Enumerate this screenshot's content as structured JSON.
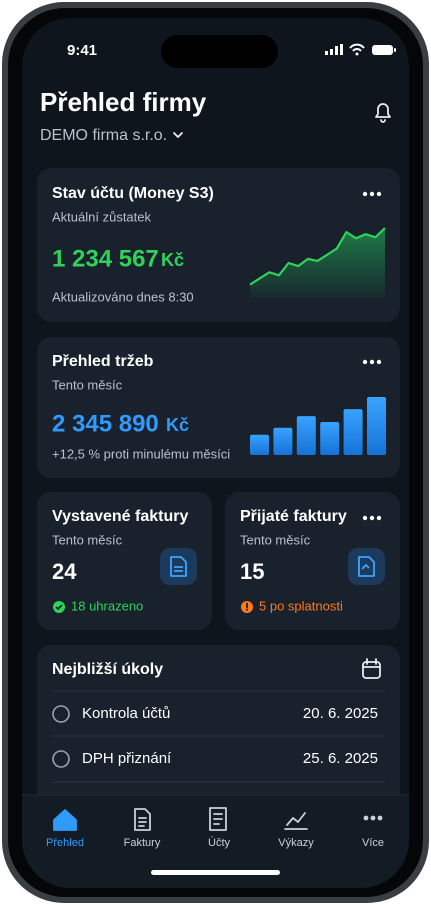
{
  "status_bar": {
    "time": "9:41"
  },
  "header": {
    "title": "Přehled firmy",
    "company": "DEMO firma s.r.o."
  },
  "balance_card": {
    "title": "Stav účtu (Money S3)",
    "label": "Aktuální zůstatek",
    "amount": "1 234 567",
    "currency": "Kč",
    "updated": "Aktualizováno dnes 8:30",
    "trend": [
      13,
      19,
      25,
      22,
      34,
      31,
      38,
      36,
      42,
      48,
      64,
      58,
      62,
      59,
      68
    ]
  },
  "revenue_card": {
    "title": "Přehled tržeb",
    "label": "Tento měsíc",
    "amount": "2 345 890",
    "currency": "Kč",
    "change": "+12,5 % proti minulému měsíci",
    "bars": [
      35,
      47,
      67,
      57,
      79,
      100
    ]
  },
  "issued_card": {
    "title": "Vystavené faktury",
    "label": "Tento měsíc",
    "count": "24",
    "status": "18 uhrazeno"
  },
  "received_card": {
    "title": "Přijaté faktury",
    "label": "Tento měsíc",
    "count": "15",
    "status": "5 po splatnosti"
  },
  "tasks_card": {
    "title": "Nejbližší úkoly",
    "rows": [
      [
        "Kontrola účtů",
        "20. 6. 2025"
      ],
      [
        "DPH přiznání",
        "25. 6. 2025"
      ]
    ]
  },
  "tab_bar": [
    "Přehled",
    "Faktury",
    "Účty",
    "Výkazy",
    "Více"
  ]
}
